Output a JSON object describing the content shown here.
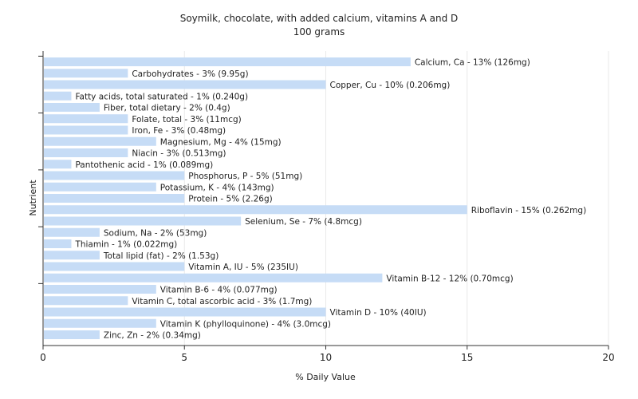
{
  "chart_data": {
    "type": "bar",
    "orientation": "horizontal",
    "title": "Soymilk, chocolate, with added calcium, vitamins A and D",
    "subtitle": "100 grams",
    "xlabel": "% Daily Value",
    "ylabel": "Nutrient",
    "xlim": [
      0,
      20
    ],
    "xticks": [
      0,
      5,
      10,
      15,
      20
    ],
    "grid": true,
    "bar_color": "#c6dcf6",
    "categories": [
      "Calcium, Ca",
      "Carbohydrates",
      "Copper, Cu",
      "Fatty acids, total saturated",
      "Fiber, total dietary",
      "Folate, total",
      "Iron, Fe",
      "Magnesium, Mg",
      "Niacin",
      "Pantothenic acid",
      "Phosphorus, P",
      "Potassium, K",
      "Protein",
      "Riboflavin",
      "Selenium, Se",
      "Sodium, Na",
      "Thiamin",
      "Total lipid (fat)",
      "Vitamin A, IU",
      "Vitamin B-12",
      "Vitamin B-6",
      "Vitamin C, total ascorbic acid",
      "Vitamin D",
      "Vitamin K (phylloquinone)",
      "Zinc, Zn"
    ],
    "values": [
      13,
      3,
      10,
      1,
      2,
      3,
      3,
      4,
      3,
      1,
      5,
      4,
      5,
      15,
      7,
      2,
      1,
      2,
      5,
      12,
      4,
      3,
      10,
      4,
      2
    ],
    "labels": [
      "Calcium, Ca - 13% (126mg)",
      "Carbohydrates - 3% (9.95g)",
      "Copper, Cu - 10% (0.206mg)",
      "Fatty acids, total saturated - 1% (0.240g)",
      "Fiber, total dietary - 2% (0.4g)",
      "Folate, total - 3% (11mcg)",
      "Iron, Fe - 3% (0.48mg)",
      "Magnesium, Mg - 4% (15mg)",
      "Niacin - 3% (0.513mg)",
      "Pantothenic acid - 1% (0.089mg)",
      "Phosphorus, P - 5% (51mg)",
      "Potassium, K - 4% (143mg)",
      "Protein - 5% (2.26g)",
      "Riboflavin - 15% (0.262mg)",
      "Selenium, Se - 7% (4.8mcg)",
      "Sodium, Na - 2% (53mg)",
      "Thiamin - 1% (0.022mg)",
      "Total lipid (fat) - 2% (1.53g)",
      "Vitamin A, IU - 5% (235IU)",
      "Vitamin B-12 - 12% (0.70mcg)",
      "Vitamin B-6 - 4% (0.077mg)",
      "Vitamin C, total ascorbic acid - 3% (1.7mg)",
      "Vitamin D - 10% (40IU)",
      "Vitamin K (phylloquinone) - 4% (3.0mcg)",
      "Zinc, Zn - 2% (0.34mg)"
    ]
  }
}
